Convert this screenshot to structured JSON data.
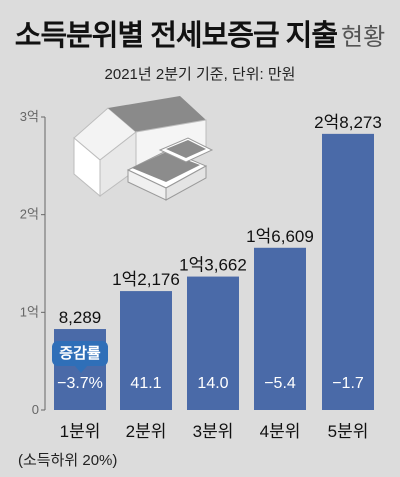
{
  "header": {
    "title": "소득분위별 전세보증금 지출",
    "title_suffix": "현황",
    "subtitle": "2021년 2분기 기준, 단위: 만원"
  },
  "badge": {
    "label": "증감률"
  },
  "footnote": "(소득하위 20%)",
  "colors": {
    "bar": "#4a6aa8",
    "badge": "#2f6fb8",
    "background": "#dcdcdc"
  },
  "illustration": "house-icon",
  "chart_data": {
    "type": "bar",
    "title": "소득분위별 전세보증금 지출 현황",
    "categories": [
      "1분위",
      "2분위",
      "3분위",
      "4분위",
      "5분위"
    ],
    "values": [
      8289,
      12176,
      13662,
      16609,
      28273
    ],
    "value_labels": [
      "8,289",
      "1억2,176",
      "1억3,662",
      "1억6,609",
      "2억8,273"
    ],
    "change_rate": [
      -3.7,
      41.1,
      14.0,
      -5.4,
      -1.7
    ],
    "change_rate_labels": [
      "−3.7%",
      "41.1",
      "14.0",
      "−5.4",
      "−1.7"
    ],
    "yticks": [
      {
        "value": 0,
        "label": "0"
      },
      {
        "value": 10000,
        "label": "1억"
      },
      {
        "value": 20000,
        "label": "2억"
      },
      {
        "value": 30000,
        "label": "3억"
      }
    ],
    "ylim": [
      0,
      30000
    ],
    "grid": false,
    "xlabel": "",
    "ylabel": ""
  }
}
